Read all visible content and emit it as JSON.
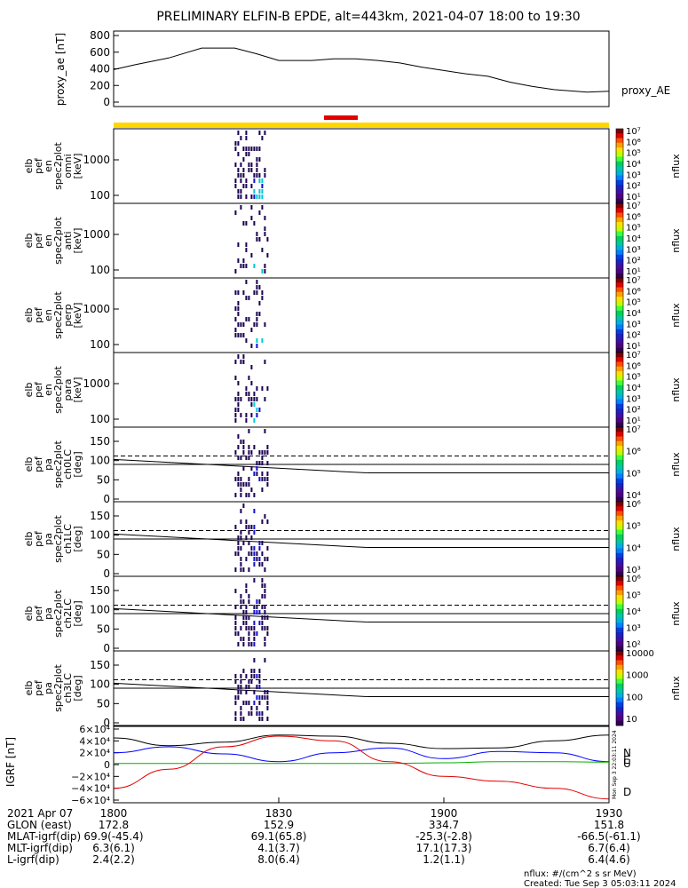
{
  "title": "PRELIMINARY ELFIN-B EPDE, alt=443km, 2021-04-07 18:00 to 19:30",
  "colors": {
    "yellow_bar": "#FFD700",
    "red_bar": "#E00000",
    "grf_north": "#000000",
    "grf_east": "#0000FF",
    "grf_up": "#00B000",
    "grf_down": "#E00000",
    "spec_dark": "#1A0050",
    "spec_mid": "#1010D0",
    "spec_cyan": "#00C8D8"
  },
  "chart_data": [
    {
      "id": "proxy_ae",
      "type": "line",
      "ylabel": "proxy_ae [nT]",
      "ylim": [
        0,
        800
      ],
      "yticks": [
        "800",
        "600",
        "400",
        "200",
        "0"
      ],
      "legend": "proxy_AE",
      "x_minutes": [
        0,
        4,
        10,
        16,
        22,
        26,
        30,
        36,
        40,
        44,
        48,
        52,
        56,
        60,
        64,
        68,
        72,
        76,
        80,
        86,
        90
      ],
      "values": [
        390,
        450,
        530,
        650,
        650,
        580,
        500,
        500,
        520,
        520,
        500,
        470,
        420,
        380,
        340,
        310,
        240,
        190,
        150,
        120,
        130
      ]
    },
    {
      "id": "en_omni",
      "type": "heatmap",
      "ylabel": [
        "elb",
        "pef",
        "en",
        "spec2plot",
        "omni",
        "[keV]"
      ],
      "yticks": [
        "1000",
        "100"
      ],
      "colorbar": {
        "label": "nflux",
        "ticks": [
          "10⁷",
          "10⁶",
          "10⁵",
          "10⁴",
          "10³",
          "10²",
          "10¹"
        ]
      },
      "data_window_minutes": [
        22,
        28
      ]
    },
    {
      "id": "en_anti",
      "type": "heatmap",
      "ylabel": [
        "elb",
        "pef",
        "en",
        "spec2plot",
        "anti",
        "[keV]"
      ],
      "yticks": [
        "1000",
        "100"
      ],
      "colorbar": {
        "label": "nflux",
        "ticks": [
          "10⁷",
          "10⁶",
          "10⁵",
          "10⁴",
          "10³",
          "10²",
          "10¹"
        ]
      },
      "data_window_minutes": [
        22,
        28
      ]
    },
    {
      "id": "en_perp",
      "type": "heatmap",
      "ylabel": [
        "elb",
        "pef",
        "en",
        "spec2plot",
        "perp",
        "[keV]"
      ],
      "yticks": [
        "1000",
        "100"
      ],
      "colorbar": {
        "label": "nflux",
        "ticks": [
          "10⁷",
          "10⁶",
          "10⁵",
          "10⁴",
          "10³",
          "10²",
          "10¹"
        ]
      },
      "data_window_minutes": [
        22,
        28
      ]
    },
    {
      "id": "en_para",
      "type": "heatmap",
      "ylabel": [
        "elb",
        "pef",
        "en",
        "spec2plot",
        "para",
        "[keV]"
      ],
      "yticks": [
        "1000",
        "100"
      ],
      "colorbar": {
        "label": "nflux",
        "ticks": [
          "10⁷",
          "10⁶",
          "10⁵",
          "10⁴",
          "10³",
          "10²",
          "10¹"
        ]
      },
      "data_window_minutes": [
        22,
        28
      ]
    },
    {
      "id": "pa_ch0lc",
      "type": "heatmap",
      "ylabel": [
        "elb",
        "pef",
        "pa",
        "spec2plot",
        "ch0LC",
        "[deg]"
      ],
      "yticks": [
        "150",
        "100",
        "50",
        "0"
      ],
      "colorbar": {
        "label": "nflux",
        "ticks": [
          "10⁷",
          "10⁶",
          "10⁵",
          "10⁴"
        ]
      },
      "data_window_minutes": [
        22,
        28
      ]
    },
    {
      "id": "pa_ch1lc",
      "type": "heatmap",
      "ylabel": [
        "elb",
        "pef",
        "pa",
        "spec2plot",
        "ch1LC",
        "[deg]"
      ],
      "yticks": [
        "150",
        "100",
        "50",
        "0"
      ],
      "colorbar": {
        "label": "nflux",
        "ticks": [
          "10⁶",
          "10⁵",
          "10⁴",
          "10³"
        ]
      },
      "data_window_minutes": [
        22,
        28
      ]
    },
    {
      "id": "pa_ch2lc",
      "type": "heatmap",
      "ylabel": [
        "elb",
        "pef",
        "pa",
        "spec2plot",
        "ch2LC",
        "[deg]"
      ],
      "yticks": [
        "150",
        "100",
        "50",
        "0"
      ],
      "colorbar": {
        "label": "nflux",
        "ticks": [
          "10⁶",
          "10⁵",
          "10⁴",
          "10³",
          "10²"
        ]
      },
      "data_window_minutes": [
        22,
        28
      ]
    },
    {
      "id": "pa_ch3lc",
      "type": "heatmap",
      "ylabel": [
        "elb",
        "pef",
        "pa",
        "spec2plot",
        "ch3LC",
        "[deg]"
      ],
      "yticks": [
        "150",
        "100",
        "50",
        "0"
      ],
      "colorbar": {
        "label": "nflux",
        "ticks": [
          "10000",
          "1000",
          "100",
          "10"
        ]
      },
      "data_window_minutes": [
        22,
        28
      ]
    },
    {
      "id": "igrf",
      "type": "line",
      "ylabel": "IGRF [nT]",
      "ylim": [
        -60000,
        60000
      ],
      "yticks": [
        "6×10⁴",
        "4×10⁴",
        "2×10⁴",
        "0",
        "−2×10⁴",
        "−4×10⁴",
        "−6×10⁴"
      ],
      "legend": [
        "N",
        "E",
        "U",
        "D"
      ],
      "x_minutes": [
        0,
        10,
        20,
        30,
        40,
        50,
        60,
        70,
        80,
        90
      ],
      "series": [
        {
          "name": "N",
          "values": [
            45000,
            32000,
            38000,
            50000,
            48000,
            36000,
            27000,
            28000,
            40000,
            50000
          ]
        },
        {
          "name": "E",
          "values": [
            20000,
            30000,
            18000,
            5000,
            20000,
            28000,
            10000,
            22000,
            20000,
            5000
          ]
        },
        {
          "name": "U",
          "values": [
            2000,
            2000,
            2000,
            2000,
            2000,
            2000,
            3000,
            5000,
            5000,
            4000
          ]
        },
        {
          "name": "D",
          "values": [
            -40000,
            -8000,
            30000,
            48000,
            40000,
            5000,
            -20000,
            -28000,
            -40000,
            -58000
          ]
        }
      ]
    }
  ],
  "x_axis": {
    "tick_labels": [
      "1800",
      "1830",
      "1900",
      "1930"
    ],
    "tick_minutes": [
      0,
      30,
      60,
      90
    ]
  },
  "bottom_table": {
    "rows": [
      {
        "label": "2021 Apr 07",
        "values": [
          "1800",
          "1830",
          "1900",
          "1930"
        ]
      },
      {
        "label": "GLON (east)",
        "values": [
          "172.8",
          "152.9",
          "334.7",
          "151.8"
        ]
      },
      {
        "label": "MLAT-igrf(dip)",
        "values": [
          "69.9(-45.4)",
          "69.1(65.8)",
          "-25.3(-2.8)",
          "-66.5(-61.1)"
        ]
      },
      {
        "label": "MLT-igrf(dip)",
        "values": [
          "6.3(6.1)",
          "4.1(3.7)",
          "17.1(17.3)",
          "6.7(6.4)"
        ]
      },
      {
        "label": "L-igrf(dip)",
        "values": [
          "2.4(2.2)",
          "8.0(6.4)",
          "1.2(1.1)",
          "6.4(4.6)"
        ]
      }
    ]
  },
  "footer": {
    "units": "nflux: #/(cm^2 s sr MeV)",
    "created": "Created: Tue Sep  3 05:03:11 2024",
    "side_stamp": "Mon Sep  3 22:03:11 2024"
  }
}
